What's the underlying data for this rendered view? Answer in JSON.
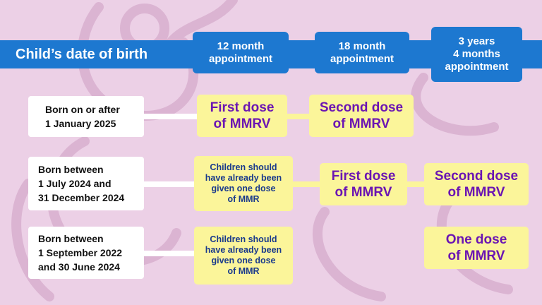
{
  "header": {
    "title": "Child’s date of birth",
    "columns": [
      "12 month\nappointment",
      "18 month\nappointment",
      "3 years\n4 months\nappointment"
    ]
  },
  "rows": [
    {
      "label": "Born on or after\n1 January 2025",
      "m12": "First dose\nof MMRV",
      "m18": "Second dose\nof MMRV"
    },
    {
      "label": "Born between\n1 July 2024 and\n31 December 2024",
      "m12": "Children should\nhave already been\ngiven one dose\nof MMR",
      "m18": "First dose\nof MMRV",
      "y3m4": "Second dose\nof MMRV"
    },
    {
      "label": "Born between\n1 September 2022\nand 30 June 2024",
      "m12": "Children should\nhave already been\ngiven one dose\nof MMR",
      "y3m4": "One dose\nof MMRV"
    }
  ],
  "colors": {
    "background": "#ecd0e6",
    "header_blue": "#1d78d0",
    "cell_yellow": "#fbf59a",
    "dose_purple": "#6b15b3",
    "note_navy": "#1a3a8c"
  }
}
